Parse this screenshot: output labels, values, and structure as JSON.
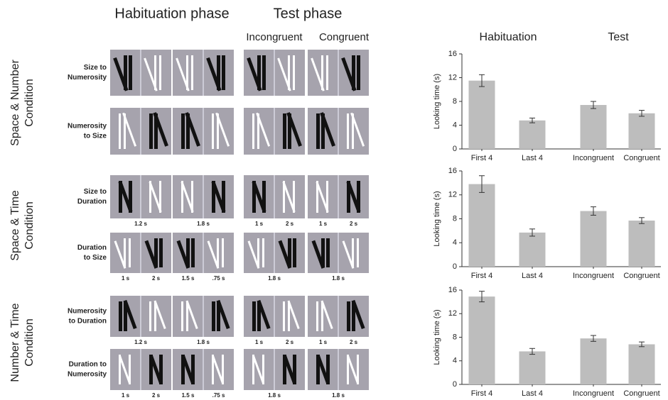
{
  "headers": {
    "habituation_phase": "Habituation phase",
    "test_phase": "Test phase",
    "incongruent": "Incongruent",
    "congruent": "Congruent",
    "chart_habituation": "Habituation",
    "chart_test": "Test"
  },
  "conditions": [
    {
      "label": [
        "Space & Number",
        "Condition"
      ],
      "rows": [
        {
          "label": [
            "Size to",
            "Numerosity"
          ],
          "hab_times": [],
          "test_times": []
        },
        {
          "label": [
            "Numerosity",
            "to Size"
          ],
          "hab_times": [],
          "test_times": []
        }
      ]
    },
    {
      "label": [
        "Space & Time",
        "Condition"
      ],
      "rows": [
        {
          "label": [
            "Size to",
            "Duration"
          ],
          "hab_times": [
            "1.2 s",
            "1.8 s"
          ],
          "test_times": [
            "1 s",
            "2 s",
            "1 s",
            "2 s"
          ]
        },
        {
          "label": [
            "Duration",
            "to Size"
          ],
          "hab_times": [
            "1 s",
            "2 s",
            "1.5 s",
            ".75 s"
          ],
          "test_times": [
            "1.8 s",
            "1.8 s"
          ]
        }
      ]
    },
    {
      "label": [
        "Number & Time",
        "Condition"
      ],
      "rows": [
        {
          "label": [
            "Numerosity",
            "to Duration"
          ],
          "hab_times": [
            "1.2 s",
            "1.8 s"
          ],
          "test_times": [
            "1 s",
            "2 s",
            "1 s",
            "2 s"
          ]
        },
        {
          "label": [
            "Duration to",
            "Numerosity"
          ],
          "hab_times": [
            "1 s",
            "2 s",
            "1.5 s",
            ".75 s"
          ],
          "test_times": [
            "1.8 s",
            "1.8 s"
          ]
        }
      ]
    }
  ],
  "chart_data": [
    {
      "type": "bar",
      "y_label": "Looking time (s)",
      "categories": [
        "First 4",
        "Last 4",
        "Incongruent",
        "Congruent"
      ],
      "values": [
        11.5,
        4.8,
        7.4,
        6.0
      ],
      "errors": [
        1.0,
        0.4,
        0.6,
        0.5
      ],
      "color": "#bdbdbd",
      "ylim": [
        0,
        16
      ],
      "yticks": [
        0,
        4,
        8,
        12,
        16
      ]
    },
    {
      "type": "bar",
      "y_label": "Looking time (s)",
      "categories": [
        "First 4",
        "Last 4",
        "Incongruent",
        "Congruent"
      ],
      "values": [
        13.8,
        5.7,
        9.3,
        7.7
      ],
      "errors": [
        1.4,
        0.6,
        0.7,
        0.5
      ],
      "color": "#bdbdbd",
      "ylim": [
        0,
        16
      ],
      "yticks": [
        0,
        4,
        8,
        12,
        16
      ]
    },
    {
      "type": "bar",
      "y_label": "Looking time (s)",
      "categories": [
        "First 4",
        "Last 4",
        "Incongruent",
        "Congruent"
      ],
      "values": [
        14.9,
        5.6,
        7.8,
        6.8
      ],
      "errors": [
        0.9,
        0.5,
        0.5,
        0.4
      ],
      "color": "#bdbdbd",
      "ylim": [
        0,
        16
      ],
      "yticks": [
        0,
        4,
        8,
        12,
        16
      ]
    }
  ]
}
